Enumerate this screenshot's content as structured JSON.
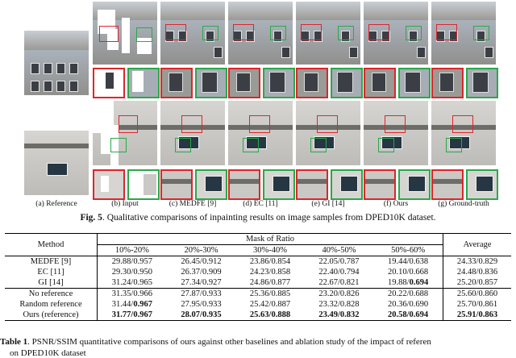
{
  "figure": {
    "panel_captions": [
      "(a) Reference",
      "(b) Input",
      "(c) MEDFE [9]",
      "(d) EC [11]",
      "(e) GI [14]",
      "(f) Ours",
      "(g) Ground-truth"
    ],
    "caption_label": "Fig. 5",
    "caption_text": ". Qualitative comparisons of inpainting results on image samples from DPED10K dataset."
  },
  "table": {
    "header_method": "Method",
    "header_mask": "Mask of Ratio",
    "header_average": "Average",
    "mask_ranges": [
      "10%-20%",
      "20%-30%",
      "30%-40%",
      "40%-50%",
      "50%-60%"
    ],
    "rows": [
      {
        "method": "MEDFE [9]",
        "values": [
          "29.88/0.957",
          "26.45/0.912",
          "23.86/0.854",
          "22.05/0.787",
          "19.44/0.638"
        ],
        "average": "24.33/0.829"
      },
      {
        "method": "EC [11]",
        "values": [
          "29.30/0.950",
          "26.37/0.909",
          "24.23/0.858",
          "22.40/0.794",
          "20.10/0.668"
        ],
        "average": "24.48/0.836"
      },
      {
        "method": "GI [14]",
        "values": [
          "31.24/0.965",
          "27.34/0.927",
          "24.86/0.877",
          "22.67/0.821",
          "19.88/0.694"
        ],
        "average": "25.20/0.857"
      },
      {
        "method": "No reference",
        "values": [
          "31.35/0.966",
          "27.87/0.933",
          "25.36/0.885",
          "23.20/0.826",
          "20.22/0.688"
        ],
        "average": "25.60/0.860"
      },
      {
        "method": "Random reference",
        "values": [
          "31.44/0.967",
          "27.95/0.933",
          "25.42/0.887",
          "23.32/0.828",
          "20.36/0.690"
        ],
        "average": "25.70/0.861"
      },
      {
        "method": "Ours (reference)",
        "values": [
          "31.77/0.967",
          "28.07/0.935",
          "25.63/0.888",
          "23.49/0.832",
          "20.58/0.694"
        ],
        "average": "25.91/0.863"
      }
    ],
    "caption_label": "Table 1",
    "caption_text": ". PSNR/SSIM quantitative comparisons of ours against other baselines and ablation study of the impact of referen",
    "caption_line2": "on DPED10K dataset"
  }
}
